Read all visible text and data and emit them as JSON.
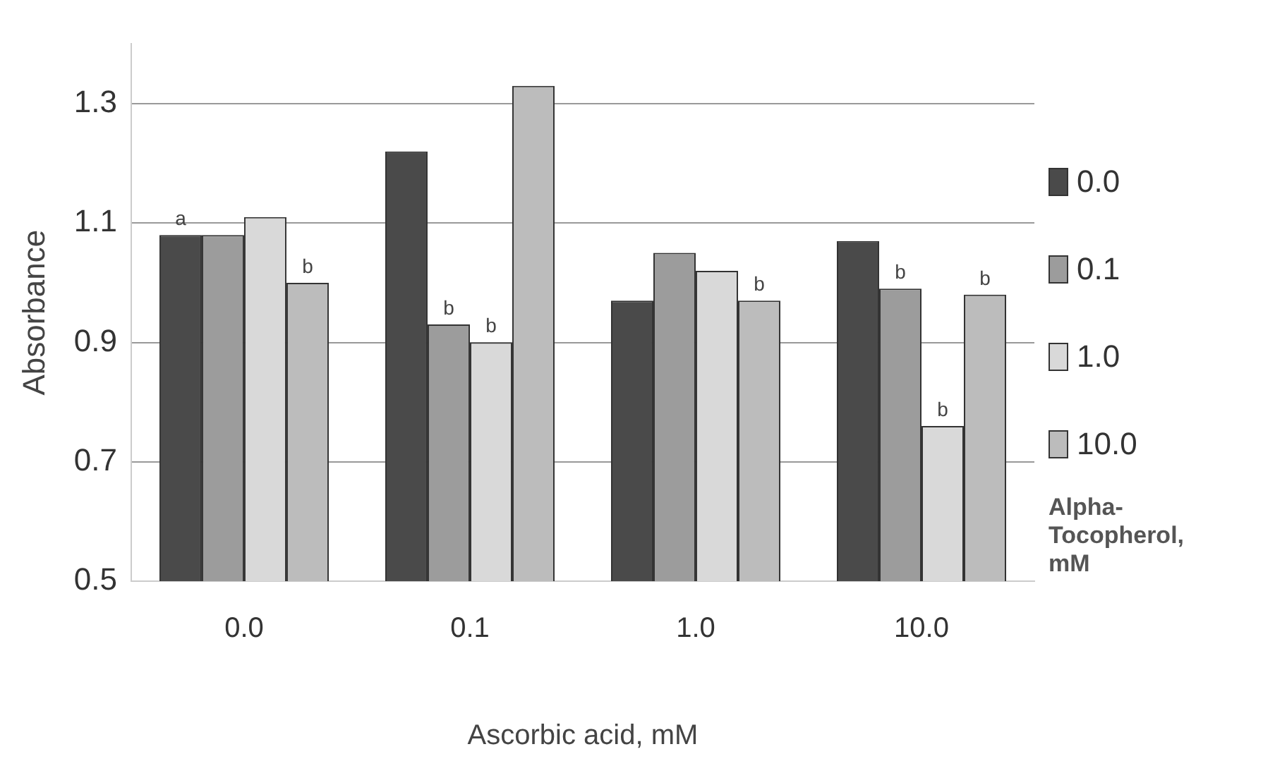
{
  "chart_data": {
    "type": "bar",
    "xlabel": "Ascorbic acid, mM",
    "ylabel": "Absorbance",
    "legend_title": "Alpha-Tocopherol, mM",
    "categories": [
      "0.0",
      "0.1",
      "1.0",
      "10.0"
    ],
    "series": [
      {
        "name": "0.0",
        "color": "#4a4a4a",
        "values": [
          1.08,
          1.22,
          0.97,
          1.07
        ],
        "value_labels": [
          "a",
          null,
          null,
          null
        ]
      },
      {
        "name": "0.1",
        "color": "#9c9c9c",
        "values": [
          1.08,
          0.93,
          1.05,
          0.99
        ],
        "value_labels": [
          null,
          "b",
          null,
          "b"
        ]
      },
      {
        "name": "1.0",
        "color": "#d9d9d9",
        "values": [
          1.11,
          0.9,
          1.02,
          0.76
        ],
        "value_labels": [
          null,
          "b",
          null,
          "b"
        ]
      },
      {
        "name": "10.0",
        "color": "#bcbcbc",
        "values": [
          1.0,
          1.33,
          0.97,
          0.98
        ],
        "value_labels": [
          "b",
          null,
          "b",
          "b"
        ]
      }
    ],
    "ylim": [
      0.5,
      1.4
    ],
    "yticks": [
      0.5,
      0.7,
      0.9,
      1.1,
      1.3
    ],
    "grid": "y",
    "legend": "right"
  }
}
